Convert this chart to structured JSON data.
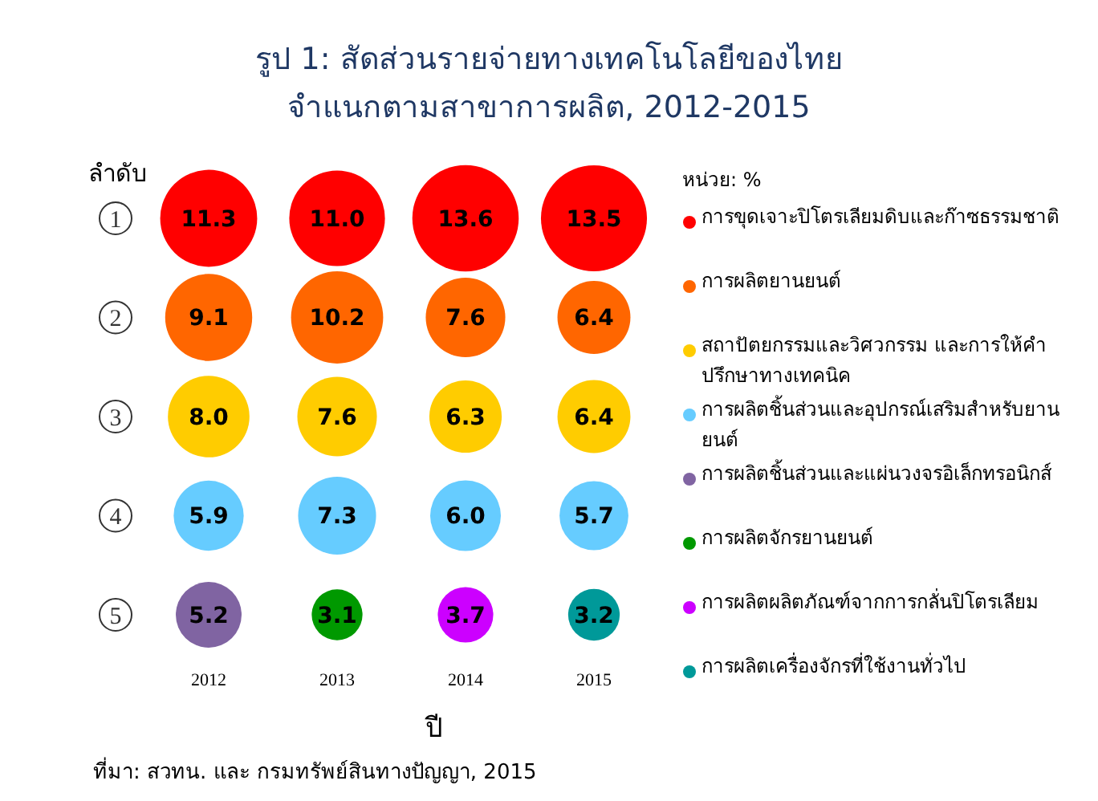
{
  "chart_data": {
    "type": "bubble",
    "title": "รูป 1: สัดส่วนรายจ่ายทางเทคโนโลยีของไทย",
    "subtitle": "จำแนกตามสาขาการผลิต, 2012-2015",
    "xlabel": "ปี",
    "ylabel": "ลำดับ",
    "categories": [
      "2012",
      "2013",
      "2014",
      "2015"
    ],
    "ylim": [
      5,
      1
    ],
    "yticks": [
      1,
      2,
      3,
      4,
      5
    ],
    "grid": false,
    "legend": "right",
    "series": [
      {
        "name": "การขุดเจาะปิโตรเลียมดิบและก๊าซธรรมชาติ",
        "color": "#ff0000",
        "values": [
          1,
          1,
          1,
          1
        ],
        "sizes": [
          11.3,
          11.0,
          13.6,
          13.5
        ],
        "value_labels": [
          "11.3",
          "11.0",
          "13.6",
          "13.5"
        ]
      },
      {
        "name": "การผลิตยานยนต์",
        "color": "#ff6600",
        "values": [
          2,
          2,
          2,
          2
        ],
        "sizes": [
          9.1,
          10.2,
          7.6,
          6.4
        ],
        "value_labels": [
          "9.1",
          "10.2",
          "7.6",
          "6.4"
        ]
      },
      {
        "name": "สถาปัตยกรรมและวิศวกรรม และการให้คำปรึกษาทางเทคนิค",
        "color": "#ffcc00",
        "values": [
          3,
          3,
          3,
          3
        ],
        "sizes": [
          8.0,
          7.6,
          6.3,
          6.4
        ],
        "value_labels": [
          "8.0",
          "7.6",
          "6.3",
          "6.4"
        ]
      },
      {
        "name": "การผลิตชิ้นส่วนและอุปกรณ์เสริมสำหรับยานยนต์",
        "color": "#66ccff",
        "values": [
          4,
          4,
          4,
          4
        ],
        "sizes": [
          5.9,
          7.3,
          6.0,
          5.7
        ],
        "value_labels": [
          "5.9",
          "7.3",
          "6.0",
          "5.7"
        ]
      },
      {
        "name": "การผลิตชิ้นส่วนและแผ่นวงจรอิเล็กทรอนิกส์",
        "color": "#8064a2",
        "values": [
          5,
          null,
          null,
          null
        ],
        "sizes": [
          5.2,
          null,
          null,
          null
        ],
        "value_labels": [
          "5.2",
          null,
          null,
          null
        ]
      },
      {
        "name": "การผลิตจักรยานยนต์",
        "color": "#009900",
        "values": [
          null,
          5,
          null,
          null
        ],
        "sizes": [
          null,
          3.1,
          null,
          null
        ],
        "value_labels": [
          null,
          "3.1",
          null,
          null
        ]
      },
      {
        "name": "การผลิตผลิตภัณฑ์จากการกลั่นปิโตรเลียม",
        "color": "#cc00ff",
        "values": [
          null,
          null,
          5,
          null
        ],
        "sizes": [
          null,
          null,
          3.7,
          null
        ],
        "value_labels": [
          null,
          null,
          "3.7",
          null
        ]
      },
      {
        "name": "การผลิตเครื่องจักรที่ใช้งานทั่วไป",
        "color": "#009999",
        "values": [
          null,
          null,
          null,
          5
        ],
        "sizes": [
          null,
          null,
          null,
          3.2
        ],
        "value_labels": [
          null,
          null,
          null,
          "3.2"
        ]
      }
    ],
    "annotations": [
      "หน่วย: %",
      "ที่มา: สวทน. และ กรมทรัพย์สินทางปัญญา, 2015"
    ]
  }
}
